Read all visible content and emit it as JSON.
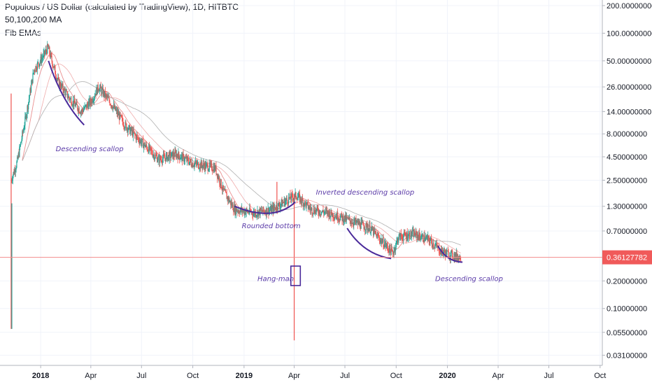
{
  "legend": {
    "title": "Populous / US Dollar (calculated by TradingView), 1D, HITBTC",
    "ma": "50,100,200 MA",
    "fib": "Fib EMAs"
  },
  "colors": {
    "up": "#26a69a",
    "down": "#ef5350",
    "ma_red": "#e57373",
    "ma_grey": "#b0b0b0",
    "annotation": "#4a2a9a",
    "price_line": "#f28b8b",
    "price_tag": "#f05a5a"
  },
  "chart_data": {
    "type": "candlestick",
    "yscale": "log",
    "ylim": [
      0.024,
      230
    ],
    "y_ticks": [
      {
        "label": "200.00000000",
        "value": 200
      },
      {
        "label": "100.00000000",
        "value": 100
      },
      {
        "label": "50.00000000",
        "value": 50
      },
      {
        "label": "26.00000000",
        "value": 26
      },
      {
        "label": "14.00000000",
        "value": 14
      },
      {
        "label": "8.00000000",
        "value": 8
      },
      {
        "label": "4.50000000",
        "value": 4.5
      },
      {
        "label": "2.50000000",
        "value": 2.5
      },
      {
        "label": "1.30000000",
        "value": 1.3
      },
      {
        "label": "0.70000000",
        "value": 0.7
      },
      {
        "label": "0.20000000",
        "value": 0.2
      },
      {
        "label": "0.10000000",
        "value": 0.1
      },
      {
        "label": "0.05500000",
        "value": 0.055
      },
      {
        "label": "0.03100000",
        "value": 0.031
      }
    ],
    "x_ticks": [
      {
        "label": "2018",
        "date": "2018-01-01",
        "bold": true
      },
      {
        "label": "Apr",
        "date": "2018-04-01",
        "bold": false
      },
      {
        "label": "Jul",
        "date": "2018-07-01",
        "bold": false
      },
      {
        "label": "Oct",
        "date": "2018-10-01",
        "bold": false
      },
      {
        "label": "2019",
        "date": "2019-01-01",
        "bold": true
      },
      {
        "label": "Apr",
        "date": "2019-04-01",
        "bold": false
      },
      {
        "label": "Jul",
        "date": "2019-07-01",
        "bold": false
      },
      {
        "label": "Oct",
        "date": "2019-10-01",
        "bold": false
      },
      {
        "label": "2020",
        "date": "2020-01-01",
        "bold": true
      },
      {
        "label": "Apr",
        "date": "2020-04-01",
        "bold": false
      },
      {
        "label": "Jul",
        "date": "2020-07-01",
        "bold": false
      },
      {
        "label": "Oct",
        "date": "2020-10-01",
        "bold": false
      }
    ],
    "xlim": [
      "2017-10-20",
      "2020-10-05"
    ],
    "last_price": {
      "label": "0.36127782",
      "value": 0.36127782
    },
    "price_path": [
      {
        "date": "2017-11-09",
        "value": 2.5
      },
      {
        "date": "2017-11-20",
        "value": 4.0
      },
      {
        "date": "2017-12-05",
        "value": 12
      },
      {
        "date": "2017-12-20",
        "value": 40
      },
      {
        "date": "2018-01-05",
        "value": 55
      },
      {
        "date": "2018-01-14",
        "value": 70
      },
      {
        "date": "2018-02-01",
        "value": 30
      },
      {
        "date": "2018-02-20",
        "value": 20
      },
      {
        "date": "2018-03-15",
        "value": 14
      },
      {
        "date": "2018-04-01",
        "value": 18
      },
      {
        "date": "2018-04-15",
        "value": 26
      },
      {
        "date": "2018-05-05",
        "value": 18
      },
      {
        "date": "2018-06-01",
        "value": 10
      },
      {
        "date": "2018-07-01",
        "value": 6.5
      },
      {
        "date": "2018-08-01",
        "value": 4.2
      },
      {
        "date": "2018-09-01",
        "value": 4.8
      },
      {
        "date": "2018-10-01",
        "value": 3.8
      },
      {
        "date": "2018-11-10",
        "value": 3.4
      },
      {
        "date": "2018-11-25",
        "value": 1.9
      },
      {
        "date": "2018-12-15",
        "value": 1.2
      },
      {
        "date": "2019-01-20",
        "value": 1.1
      },
      {
        "date": "2019-02-20",
        "value": 1.2
      },
      {
        "date": "2019-03-25",
        "value": 1.6
      },
      {
        "date": "2019-04-05",
        "value": 1.7
      },
      {
        "date": "2019-05-01",
        "value": 1.2
      },
      {
        "date": "2019-06-01",
        "value": 1.1
      },
      {
        "date": "2019-07-01",
        "value": 0.95
      },
      {
        "date": "2019-08-15",
        "value": 0.75
      },
      {
        "date": "2019-09-25",
        "value": 0.4
      },
      {
        "date": "2019-10-05",
        "value": 0.6
      },
      {
        "date": "2019-11-01",
        "value": 0.65
      },
      {
        "date": "2019-12-01",
        "value": 0.55
      },
      {
        "date": "2019-12-20",
        "value": 0.42
      },
      {
        "date": "2020-01-10",
        "value": 0.38
      },
      {
        "date": "2020-01-25",
        "value": 0.36
      }
    ],
    "spikes": [
      {
        "date": "2017-11-09",
        "high": 22,
        "low": 0.06
      },
      {
        "date": "2019-03-01",
        "high": 2.4,
        "low": 1.3
      },
      {
        "date": "2019-04-01",
        "high": 1.75,
        "low": 0.045
      }
    ],
    "annotations": [
      {
        "text": "Descending scallop",
        "date": "2018-01-28",
        "value": 5.2
      },
      {
        "text": "Rounded bottom",
        "date": "2018-12-28",
        "value": 0.75
      },
      {
        "text": "Inverted descending scallop",
        "date": "2019-05-10",
        "value": 1.75
      },
      {
        "text": "Hang-man",
        "date": "2019-01-25",
        "value": 0.2
      },
      {
        "text": "Descending scallop",
        "date": "2019-12-10",
        "value": 0.2
      }
    ],
    "arcs": [
      {
        "from": {
          "date": "2018-01-15",
          "value": 50
        },
        "to": {
          "date": "2018-03-20",
          "value": 10
        },
        "bulge": 0.25
      },
      {
        "from": {
          "date": "2018-12-15",
          "value": 1.3
        },
        "to": {
          "date": "2019-04-03",
          "value": 1.45
        },
        "bulge": -0.3
      },
      {
        "from": {
          "date": "2019-07-05",
          "value": 0.75
        },
        "to": {
          "date": "2019-09-22",
          "value": 0.35
        },
        "bulge": 0.25
      },
      {
        "from": {
          "date": "2019-12-15",
          "value": 0.48
        },
        "to": {
          "date": "2020-01-28",
          "value": 0.32
        },
        "bulge": 0.3
      }
    ],
    "box": {
      "from": {
        "date": "2019-03-26",
        "value": 0.29
      },
      "to": {
        "date": "2019-04-12",
        "value": 0.178
      }
    }
  }
}
